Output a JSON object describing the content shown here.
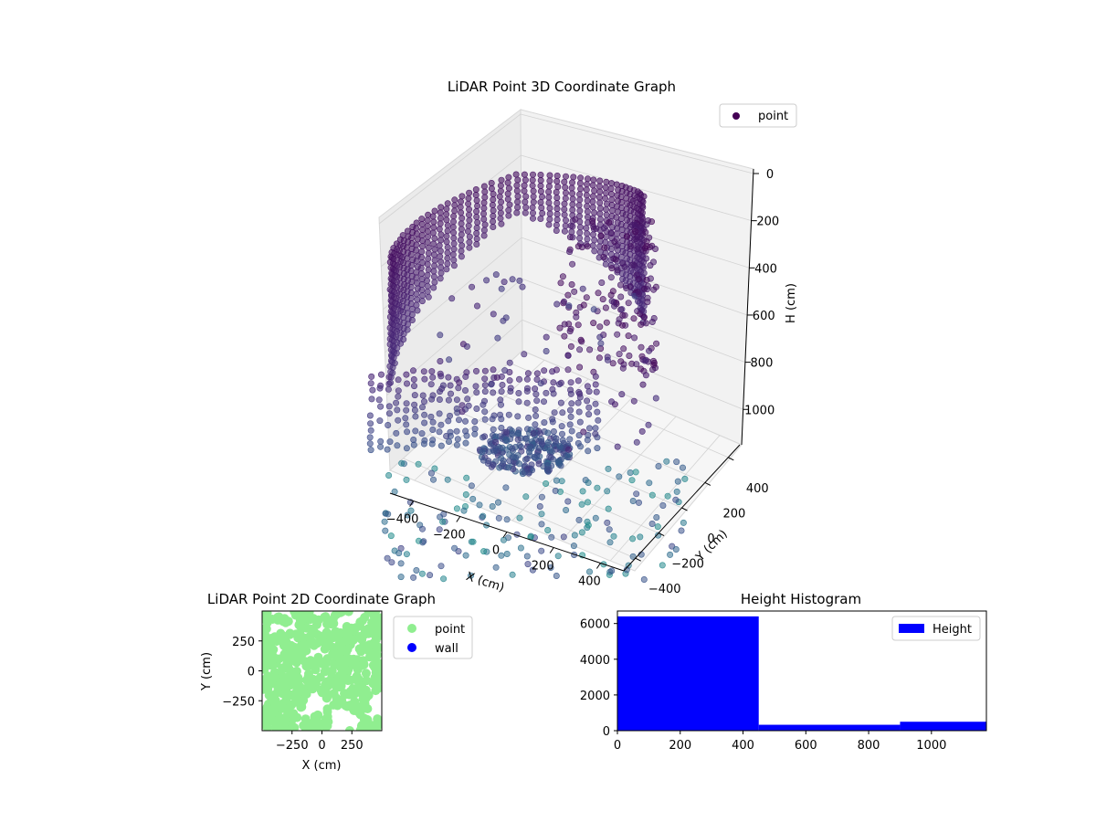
{
  "chart_data": [
    {
      "type": "scatter",
      "projection": "3d",
      "title": "LiDAR Point 3D Coordinate Graph",
      "xlabel": "X (cm)",
      "ylabel": "Y (cm)",
      "zlabel": "H (cm)",
      "xticks": [
        "-400",
        "-200",
        "0",
        "200",
        "400"
      ],
      "yticks": [
        "400",
        "200",
        "0",
        "-200",
        "-400"
      ],
      "zticks": [
        "0",
        "200",
        "400",
        "600",
        "800",
        "1000"
      ],
      "xlim": [
        -500,
        500
      ],
      "ylim": [
        -500,
        500
      ],
      "zlim": [
        1150,
        0
      ],
      "legend": {
        "entries": [
          "point"
        ],
        "position": "top-right"
      },
      "series": [
        {
          "name": "point",
          "color": "#440154",
          "colormap": "viridis (by height)"
        }
      ],
      "grid": true
    },
    {
      "type": "scatter",
      "title": "LiDAR Point 2D Coordinate Graph",
      "xlabel": "X (cm)",
      "ylabel": "Y (cm)",
      "xticks": [
        "−250",
        "0",
        "250"
      ],
      "yticks": [
        "250",
        "0",
        "−250"
      ],
      "xlim": [
        -500,
        500
      ],
      "ylim": [
        -500,
        500
      ],
      "legend": {
        "entries": [
          "point",
          "wall"
        ],
        "position": "outside-right"
      },
      "series": [
        {
          "name": "point",
          "color": "#90ee90"
        },
        {
          "name": "wall",
          "color": "#0000ff"
        }
      ]
    },
    {
      "type": "bar",
      "subtype": "histogram",
      "title": "Height Histogram",
      "xticks": [
        "0",
        "200",
        "400",
        "600",
        "800",
        "1000"
      ],
      "yticks": [
        "0",
        "2000",
        "4000",
        "6000"
      ],
      "xlim": [
        0,
        1175
      ],
      "ylim": [
        0,
        6700
      ],
      "bins": [
        {
          "x0": 0,
          "x1": 450,
          "count": 6400
        },
        {
          "x0": 450,
          "x1": 900,
          "count": 330
        },
        {
          "x0": 900,
          "x1": 1175,
          "count": 500
        }
      ],
      "legend": {
        "entries": [
          "Height"
        ],
        "position": "top-right"
      },
      "series": [
        {
          "name": "Height",
          "color": "#0000ff"
        }
      ]
    }
  ]
}
